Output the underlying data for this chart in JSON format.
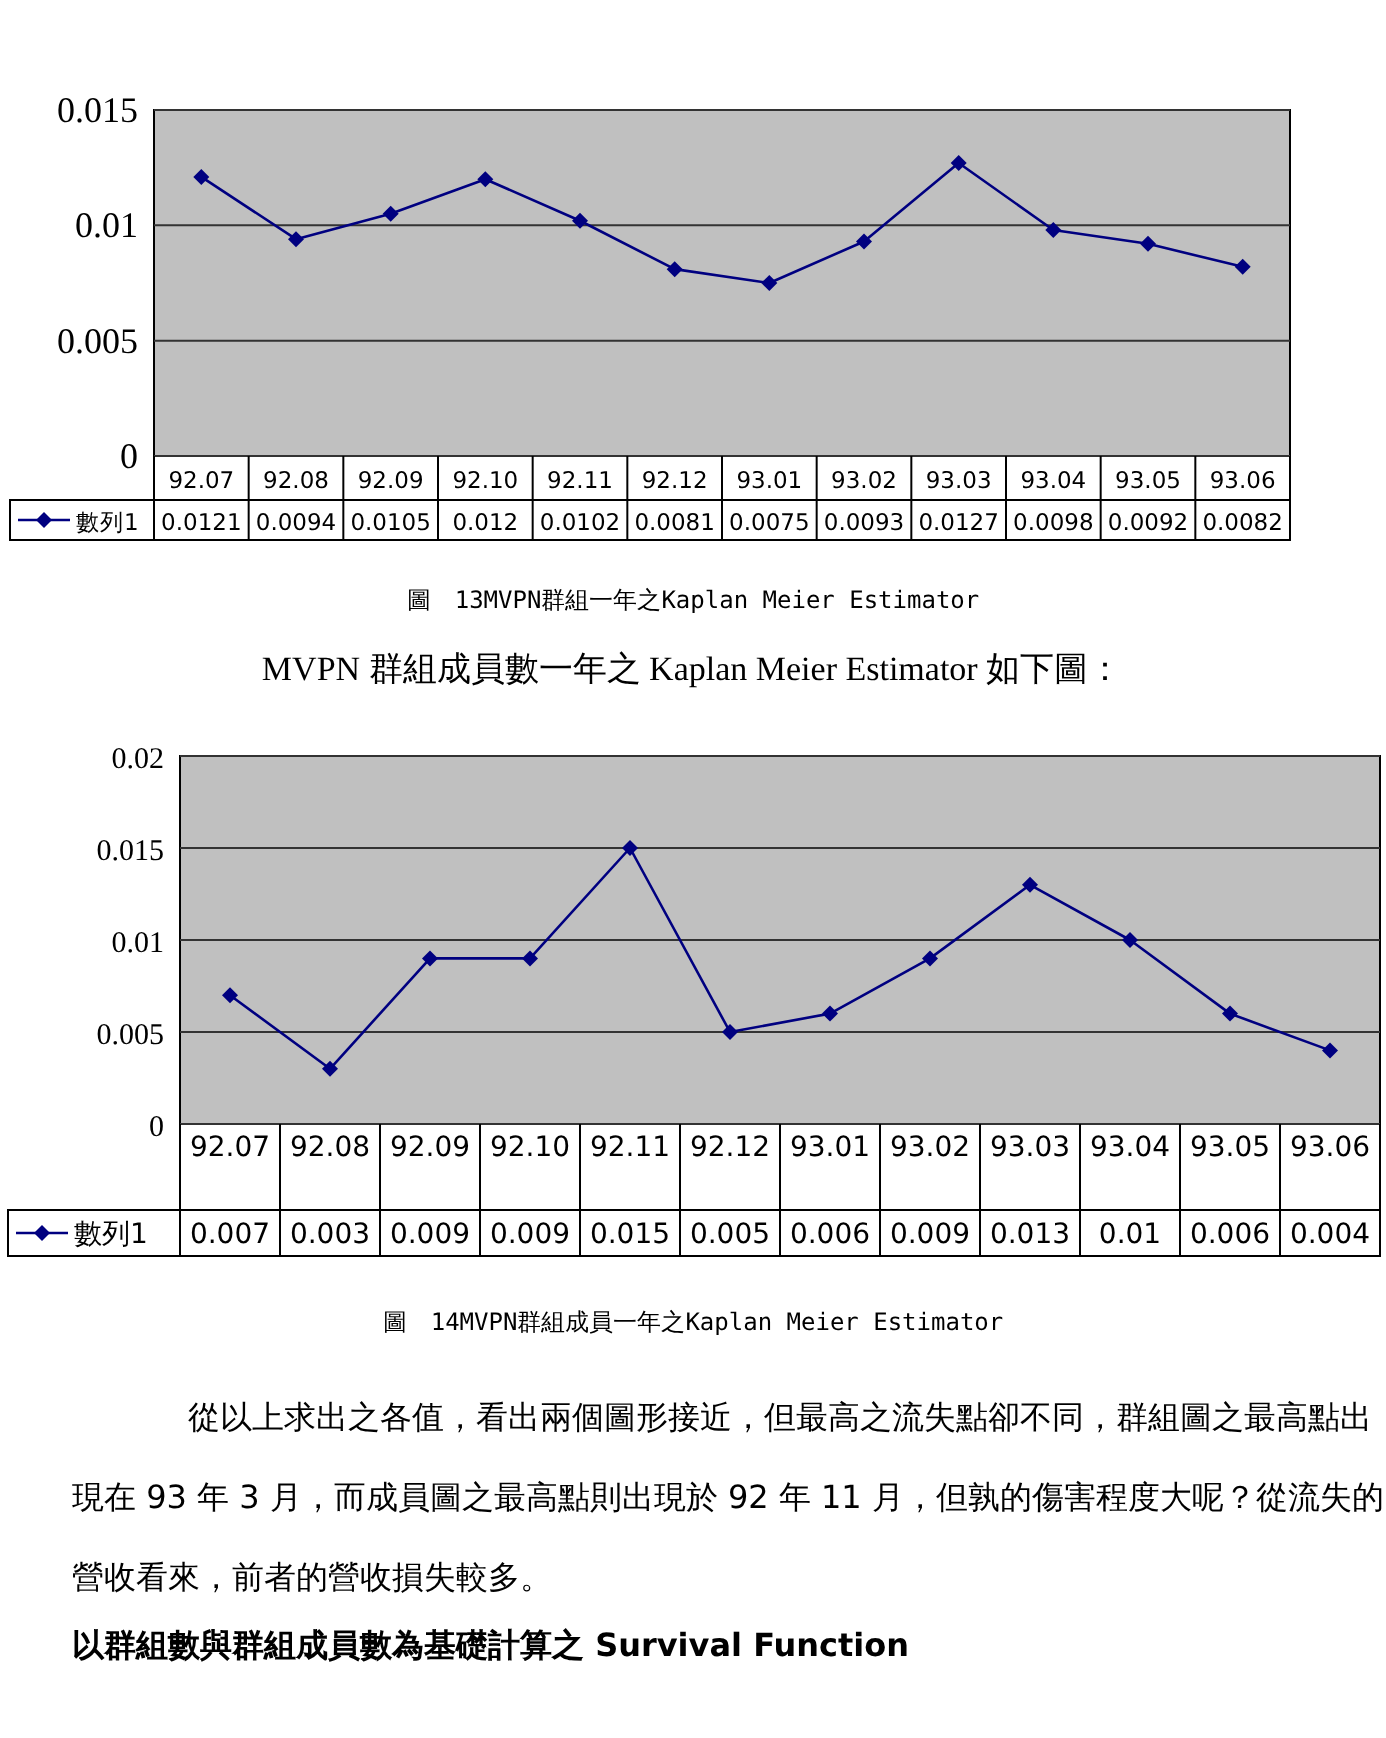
{
  "chart_data": [
    {
      "type": "line",
      "categories": [
        "92.07",
        "92.08",
        "92.09",
        "92.10",
        "92.11",
        "92.12",
        "93.01",
        "93.02",
        "93.03",
        "93.04",
        "93.05",
        "93.06"
      ],
      "series": [
        {
          "name": "數列1",
          "color": "#000080",
          "values": [
            0.0121,
            0.0094,
            0.0105,
            0.012,
            0.0102,
            0.0081,
            0.0075,
            0.0093,
            0.0127,
            0.0098,
            0.0092,
            0.0082
          ]
        }
      ],
      "ylim": [
        0,
        0.015
      ],
      "yticks": [
        0,
        0.005,
        0.01,
        0.015
      ],
      "grid": "y",
      "legend": "bottom",
      "marker": "diamond",
      "line_style": "solid",
      "data_labels": true,
      "annotations": [
        "圖　13MVPN群組一年之Kaplan Meier Estimator"
      ]
    },
    {
      "type": "line",
      "title": "MVPN 群組成員數一年之 Kaplan Meier Estimator 如下圖：",
      "categories": [
        "92.07",
        "92.08",
        "92.09",
        "92.10",
        "92.11",
        "92.12",
        "93.01",
        "93.02",
        "93.03",
        "93.04",
        "93.05",
        "93.06"
      ],
      "series": [
        {
          "name": "數列1",
          "color": "#000080",
          "values": [
            0.007,
            0.003,
            0.009,
            0.009,
            0.015,
            0.005,
            0.006,
            0.009,
            0.013,
            0.01,
            0.006,
            0.004
          ]
        }
      ],
      "ylim": [
        0,
        0.02
      ],
      "yticks": [
        0,
        0.005,
        0.01,
        0.015,
        0.02
      ],
      "grid": "y",
      "legend": "bottom",
      "marker": "diamond",
      "line_style": "solid",
      "data_labels": true,
      "annotations": [
        "圖　14MVPN群組成員一年之Kaplan Meier Estimator",
        "從以上求出之各值，看出兩個圖形接近，但最高之流失點卻不同，群組圖之最高點出現在 93 年 3 月，而成員圖之最高點則出現於 92 年 11 月，但孰的傷害程度大呢？從流失的營收看來，前者的營收損失較多。",
        "**以群組數與群組成員數為基礎計算之 Survival Function**"
      ]
    }
  ]
}
